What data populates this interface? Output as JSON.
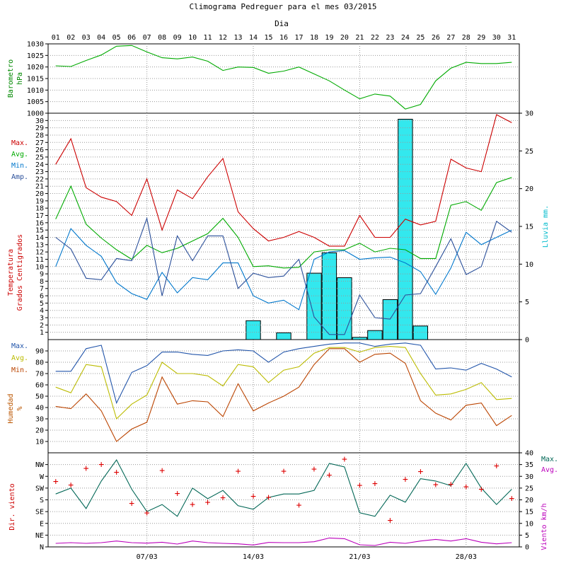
{
  "chart_data": {
    "type": "line",
    "title": "Climograma Pedreguer para el mes 03/2015",
    "xlabel": "Dia",
    "days": [
      "01",
      "02",
      "03",
      "04",
      "05",
      "06",
      "07",
      "08",
      "09",
      "10",
      "11",
      "12",
      "13",
      "14",
      "15",
      "16",
      "17",
      "18",
      "19",
      "20",
      "21",
      "22",
      "23",
      "24",
      "25",
      "26",
      "27",
      "28",
      "29",
      "30",
      "31"
    ],
    "week_labels": [
      {
        "day": 7,
        "label": "07/03"
      },
      {
        "day": 14,
        "label": "14/03"
      },
      {
        "day": 21,
        "label": "21/03"
      },
      {
        "day": 28,
        "label": "28/03"
      }
    ],
    "panels": [
      {
        "id": "barometro",
        "ylabel": [
          "Barometro",
          "hPa"
        ],
        "ylabel_color": "#008800",
        "ylim": [
          1000,
          1030
        ],
        "yticks": [
          1000,
          1005,
          1010,
          1015,
          1020,
          1025,
          1030
        ],
        "series": [
          {
            "name": "",
            "color": "#00aa00",
            "values": [
              1020.5,
              1020.2,
              1022.8,
              1025.2,
              1029.0,
              1029.3,
              1026.5,
              1024.0,
              1023.5,
              1024.3,
              1022.5,
              1018.5,
              1020.0,
              1019.8,
              1017.3,
              1018.2,
              1020.0,
              1017.0,
              1014.0,
              1010.0,
              1006.2,
              1008.3,
              1007.4,
              1001.8,
              1003.8,
              1014.0,
              1019.5,
              1022.0,
              1021.5,
              1021.5,
              1022.0
            ]
          }
        ]
      },
      {
        "id": "temperatura",
        "ylabel": [
          "Temperatura",
          "Grados Centigrados"
        ],
        "ylabel_color": "#cc0000",
        "ylim": [
          0,
          31
        ],
        "yticks": [
          1,
          2,
          3,
          4,
          5,
          6,
          7,
          8,
          9,
          10,
          11,
          12,
          13,
          14,
          15,
          16,
          17,
          18,
          19,
          20,
          21,
          22,
          23,
          24,
          25,
          26,
          27,
          28,
          29,
          30
        ],
        "legend": [
          {
            "label": "Max.",
            "color": "#cc0000"
          },
          {
            "label": "Avg.",
            "color": "#00aa00"
          },
          {
            "label": "Min.",
            "color": "#0077cc"
          },
          {
            "label": "Amp.",
            "color": "#2a4f9a"
          }
        ],
        "series": [
          {
            "name": "Max.",
            "color": "#cc0000",
            "values": [
              24.0,
              27.5,
              20.8,
              19.5,
              18.9,
              17.0,
              22.0,
              15.0,
              20.5,
              19.3,
              22.3,
              24.8,
              17.5,
              15.2,
              13.5,
              14.0,
              14.8,
              14.0,
              12.8,
              12.8,
              17.0,
              14.0,
              14.0,
              16.5,
              15.7,
              16.2,
              24.7,
              23.5,
              23.0,
              30.8,
              29.7
            ]
          },
          {
            "name": "Avg.",
            "color": "#00aa00",
            "values": [
              16.5,
              21.0,
              15.8,
              13.9,
              12.3,
              11.0,
              12.9,
              11.9,
              12.5,
              13.5,
              14.5,
              16.6,
              14.0,
              10.0,
              10.1,
              9.8,
              9.9,
              12.0,
              12.3,
              12.3,
              13.2,
              12.0,
              12.5,
              12.3,
              11.1,
              11.1,
              18.4,
              18.9,
              17.7,
              21.5,
              22.2
            ]
          },
          {
            "name": "Min.",
            "color": "#0077cc",
            "values": [
              10.0,
              15.2,
              12.9,
              11.4,
              7.8,
              6.3,
              5.5,
              9.2,
              6.4,
              8.5,
              8.2,
              10.5,
              10.5,
              6.0,
              5.0,
              5.4,
              4.1,
              11.0,
              12.0,
              12.2,
              11.0,
              11.2,
              11.3,
              10.5,
              9.3,
              6.2,
              9.8,
              14.7,
              13.0,
              14.0,
              15.0
            ]
          },
          {
            "name": "Amp.",
            "color": "#2a4f9a",
            "values": [
              14.0,
              12.4,
              8.4,
              8.2,
              11.1,
              10.8,
              16.6,
              6.0,
              14.2,
              10.8,
              14.2,
              14.2,
              7.0,
              9.1,
              8.5,
              8.7,
              11.0,
              3.1,
              0.7,
              0.7,
              6.1,
              3.0,
              2.8,
              6.1,
              6.3,
              10.0,
              13.8,
              8.9,
              10.0,
              16.2,
              14.7
            ]
          }
        ]
      },
      {
        "id": "lluvia",
        "ylabel": [
          "Lluvia mm."
        ],
        "ylabel_color": "#00bbcc",
        "ylim": [
          0,
          30
        ],
        "yticks": [
          0,
          5,
          10,
          15,
          20,
          25,
          30
        ],
        "bar_color": "#33e8ee",
        "values": [
          0,
          0,
          0,
          0,
          0,
          0,
          0,
          0,
          0,
          0,
          0,
          0,
          0,
          2.5,
          0,
          0.9,
          0,
          8.8,
          11.5,
          8.2,
          0.3,
          1.2,
          5.3,
          29.2,
          1.8,
          0,
          0,
          0,
          0,
          0,
          0
        ]
      },
      {
        "id": "humedad",
        "ylabel": [
          "Humedad",
          "%"
        ],
        "ylabel_color": "#bb5500",
        "ylim": [
          0,
          100
        ],
        "yticks": [
          10,
          20,
          30,
          40,
          50,
          60,
          70,
          80,
          90
        ],
        "legend": [
          {
            "label": "Max.",
            "color": "#2255aa"
          },
          {
            "label": "Avg.",
            "color": "#bbbb00"
          },
          {
            "label": "Min.",
            "color": "#bb4400"
          }
        ],
        "series": [
          {
            "name": "Max.",
            "color": "#2255aa",
            "values": [
              72,
              72,
              92,
              95,
              44,
              71,
              77,
              89,
              89,
              87,
              86,
              90,
              91,
              90,
              80,
              89,
              92,
              94,
              96,
              97,
              97,
              94,
              96,
              97,
              95,
              74,
              75,
              73,
              79,
              74,
              67
            ]
          },
          {
            "name": "Avg.",
            "color": "#bbbb00",
            "values": [
              58,
              53,
              78,
              76,
              30,
              43,
              51,
              80,
              70,
              70,
              68,
              59,
              78,
              76,
              62,
              73,
              76,
              88,
              93,
              93,
              89,
              93,
              94,
              93,
              70,
              51,
              52,
              56,
              62,
              47,
              48
            ]
          },
          {
            "name": "Min.",
            "color": "#bb4400",
            "values": [
              41,
              39,
              52,
              37,
              10,
              21,
              27,
              67,
              43,
              46,
              45,
              32,
              61,
              37,
              44,
              50,
              58,
              78,
              92,
              92,
              80,
              87,
              88,
              79,
              46,
              35,
              29,
              42,
              44,
              24,
              33
            ]
          }
        ]
      },
      {
        "id": "viento",
        "ylabel": [
          "Dir. viento"
        ],
        "ylabel_color": "#cc0000",
        "y2label": [
          "Viento km/h"
        ],
        "y2label_color": "#bb00bb",
        "dir_ticks": [
          "N",
          "NE",
          "E",
          "SE",
          "S",
          "SW",
          "W",
          "NW"
        ],
        "speed_ylim": [
          0,
          40
        ],
        "speed_yticks": [
          0,
          5,
          10,
          15,
          20,
          25,
          30,
          35,
          40
        ],
        "legend": [
          {
            "label": "Max.",
            "color": "#006655"
          },
          {
            "label": "Avg.",
            "color": "#bb00bb"
          }
        ],
        "direction_marker": "+",
        "direction_color": "#dd0000",
        "direction_degrees": [
          250,
          237,
          300,
          315,
          285,
          166,
          130,
          292,
          205,
          162,
          170,
          188,
          290,
          193,
          190,
          290,
          160,
          298,
          275,
          335,
          235,
          242,
          102,
          258,
          288,
          238,
          240,
          230,
          220,
          310,
          185
        ],
        "series": [
          {
            "name": "Max.",
            "color": "#006655",
            "values": [
              22.5,
              25,
              16.3,
              28,
              37,
              24.5,
              15,
              18,
              13,
              25,
              20.5,
              24,
              17.5,
              16,
              21,
              22.5,
              22.5,
              24,
              35.5,
              34,
              14.5,
              13,
              22,
              19,
              29,
              28,
              26,
              35.5,
              25,
              18,
              24.5
            ]
          },
          {
            "name": "Avg.",
            "color": "#bb00bb",
            "values": [
              1.5,
              1.8,
              1.5,
              1.8,
              2.5,
              1.8,
              1.6,
              2.0,
              1.2,
              2.5,
              1.8,
              1.5,
              1.3,
              0.8,
              1.9,
              1.8,
              1.8,
              2.2,
              3.8,
              3.5,
              0.9,
              0.6,
              2.0,
              1.5,
              2.5,
              3.2,
              2.5,
              3.5,
              2.0,
              1.3,
              1.8
            ]
          }
        ]
      }
    ]
  }
}
